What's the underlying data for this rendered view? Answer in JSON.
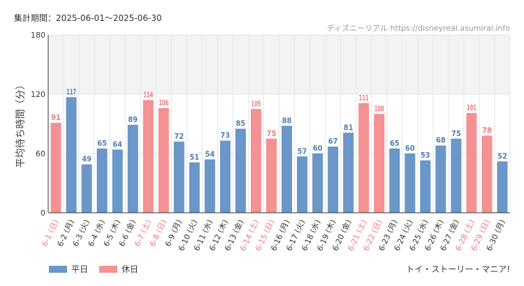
{
  "header": {
    "period": "集計期間：2025-06-01～2025-06-30",
    "source": "ディズニーリアル https://disneyreal.asumirai.info"
  },
  "footer": {
    "title": "トイ・ストーリー・マニア!"
  },
  "colors": {
    "weekday": "#6a96c8",
    "holiday": "#f49193",
    "weekday_label": "#4f7fb8",
    "holiday_label": "#f07a7c",
    "band": "#f3f3f3",
    "axis": "#333333",
    "grid": "#e6e6e6"
  },
  "chart_data": {
    "type": "bar",
    "ylabel": "平均待ち時間（分）",
    "ylim": [
      0,
      180
    ],
    "yticks": [
      0,
      60,
      120,
      180
    ],
    "shaded_band": [
      120,
      180
    ],
    "legend": [
      {
        "name": "平日",
        "key": "weekday"
      },
      {
        "name": "休日",
        "key": "holiday"
      }
    ],
    "categories": [
      "6-1 (日)",
      "6-2 (月)",
      "6-3 (火)",
      "6-4 (水)",
      "6-5 (木)",
      "6-6 (金)",
      "6-7 (土)",
      "6-8 (日)",
      "6-9 (月)",
      "6-10 (火)",
      "6-11 (水)",
      "6-12 (木)",
      "6-13 (金)",
      "6-14 (土)",
      "6-15 (日)",
      "6-16 (月)",
      "6-17 (火)",
      "6-18 (水)",
      "6-19 (木)",
      "6-20 (金)",
      "6-21 (土)",
      "6-22 (日)",
      "6-23 (月)",
      "6-24 (火)",
      "6-25 (水)",
      "6-26 (木)",
      "6-27 (金)",
      "6-28 (土)",
      "6-29 (日)",
      "6-30 (月)"
    ],
    "values": [
      91,
      117,
      49,
      65,
      64,
      89,
      114,
      106,
      72,
      51,
      54,
      73,
      85,
      105,
      75,
      88,
      57,
      60,
      67,
      81,
      111,
      100,
      65,
      60,
      53,
      68,
      75,
      101,
      78,
      52
    ],
    "day_type": [
      "holiday",
      "weekday",
      "weekday",
      "weekday",
      "weekday",
      "weekday",
      "holiday",
      "holiday",
      "weekday",
      "weekday",
      "weekday",
      "weekday",
      "weekday",
      "holiday",
      "holiday",
      "weekday",
      "weekday",
      "weekday",
      "weekday",
      "weekday",
      "holiday",
      "holiday",
      "weekday",
      "weekday",
      "weekday",
      "weekday",
      "weekday",
      "holiday",
      "holiday",
      "weekday"
    ]
  }
}
